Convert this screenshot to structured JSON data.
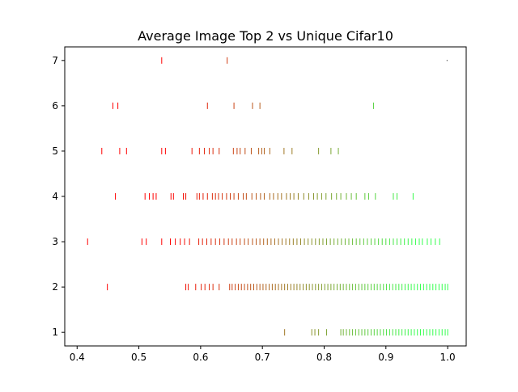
{
  "chart_data": {
    "type": "scatter",
    "marker": "vertical-tick",
    "title": "Average Image Top 2 vs Unique Cifar10",
    "xlabel": "",
    "ylabel": "",
    "xlim": [
      0.38,
      1.03
    ],
    "ylim": [
      0.7,
      7.3
    ],
    "x_ticks": [
      0.4,
      0.5,
      0.6,
      0.7,
      0.8,
      0.9,
      1.0
    ],
    "x_tick_labels": [
      "0.4",
      "0.5",
      "0.6",
      "0.7",
      "0.8",
      "0.9",
      "1.0"
    ],
    "y_ticks": [
      1,
      2,
      3,
      4,
      5,
      6,
      7
    ],
    "y_tick_labels": [
      "1",
      "2",
      "3",
      "4",
      "5",
      "6",
      "7"
    ],
    "grid": false,
    "legend": "none",
    "color_scale": {
      "low": "#ff0000",
      "high": "#33ff4d",
      "encodes": "x value (red = low, green = high)"
    },
    "rows": [
      {
        "y": 7,
        "x": [
          0.537,
          0.643,
          0.999
        ]
      },
      {
        "y": 6,
        "x": [
          0.458,
          0.466,
          0.611,
          0.654,
          0.684,
          0.696,
          0.88
        ]
      },
      {
        "y": 5,
        "x": [
          0.44,
          0.469,
          0.48,
          0.537,
          0.543,
          0.586,
          0.598,
          0.606,
          0.614,
          0.62,
          0.63,
          0.653,
          0.659,
          0.664,
          0.672,
          0.682,
          0.694,
          0.699,
          0.703,
          0.712,
          0.735,
          0.748,
          0.791,
          0.811,
          0.823
        ]
      },
      {
        "y": 4,
        "x": [
          0.462,
          0.51,
          0.517,
          0.523,
          0.528,
          0.552,
          0.556,
          0.572,
          0.576,
          0.594,
          0.598,
          0.604,
          0.611,
          0.619,
          0.624,
          0.629,
          0.635,
          0.642,
          0.648,
          0.654,
          0.661,
          0.669,
          0.674,
          0.683,
          0.69,
          0.697,
          0.703,
          0.712,
          0.718,
          0.725,
          0.731,
          0.739,
          0.745,
          0.751,
          0.758,
          0.767,
          0.775,
          0.783,
          0.789,
          0.796,
          0.803,
          0.812,
          0.82,
          0.827,
          0.836,
          0.844,
          0.852,
          0.866,
          0.872,
          0.883,
          0.912,
          0.918,
          0.944
        ]
      },
      {
        "y": 3,
        "x": [
          0.417,
          0.505,
          0.512,
          0.537,
          0.551,
          0.559,
          0.567,
          0.574,
          0.582,
          0.597,
          0.603,
          0.61,
          0.617,
          0.624,
          0.631,
          0.638,
          0.645,
          0.651,
          0.658,
          0.664,
          0.671,
          0.677,
          0.684,
          0.69,
          0.696,
          0.702,
          0.708,
          0.714,
          0.72,
          0.726,
          0.732,
          0.738,
          0.744,
          0.75,
          0.756,
          0.762,
          0.768,
          0.774,
          0.78,
          0.786,
          0.792,
          0.798,
          0.804,
          0.81,
          0.816,
          0.822,
          0.828,
          0.834,
          0.84,
          0.846,
          0.852,
          0.858,
          0.864,
          0.87,
          0.876,
          0.882,
          0.888,
          0.894,
          0.9,
          0.906,
          0.912,
          0.918,
          0.924,
          0.93,
          0.936,
          0.942,
          0.948,
          0.954,
          0.959,
          0.967,
          0.973,
          0.98,
          0.987
        ]
      },
      {
        "y": 2,
        "x": [
          0.449,
          0.576,
          0.58,
          0.592,
          0.601,
          0.607,
          0.614,
          0.62,
          0.63,
          0.647,
          0.651,
          0.656,
          0.661,
          0.666,
          0.671,
          0.676,
          0.681,
          0.686,
          0.691,
          0.696,
          0.701,
          0.706,
          0.711,
          0.716,
          0.721,
          0.726,
          0.731,
          0.736,
          0.741,
          0.746,
          0.751,
          0.756,
          0.761,
          0.766,
          0.771,
          0.776,
          0.781,
          0.786,
          0.791,
          0.796,
          0.801,
          0.806,
          0.811,
          0.816,
          0.821,
          0.826,
          0.831,
          0.836,
          0.841,
          0.846,
          0.851,
          0.856,
          0.861,
          0.866,
          0.871,
          0.876,
          0.881,
          0.886,
          0.891,
          0.896,
          0.901,
          0.906,
          0.911,
          0.916,
          0.921,
          0.926,
          0.931,
          0.936,
          0.941,
          0.946,
          0.951,
          0.956,
          0.961,
          0.966,
          0.971,
          0.976,
          0.981,
          0.986,
          0.991,
          0.996,
          1.0
        ]
      },
      {
        "y": 1,
        "x": [
          0.736,
          0.78,
          0.785,
          0.791,
          0.804,
          0.827,
          0.831,
          0.836,
          0.841,
          0.846,
          0.851,
          0.856,
          0.861,
          0.866,
          0.871,
          0.876,
          0.881,
          0.886,
          0.891,
          0.896,
          0.901,
          0.906,
          0.911,
          0.916,
          0.921,
          0.926,
          0.931,
          0.936,
          0.941,
          0.946,
          0.951,
          0.956,
          0.961,
          0.966,
          0.971,
          0.976,
          0.981,
          0.986,
          0.991,
          0.996,
          1.0
        ]
      }
    ]
  }
}
